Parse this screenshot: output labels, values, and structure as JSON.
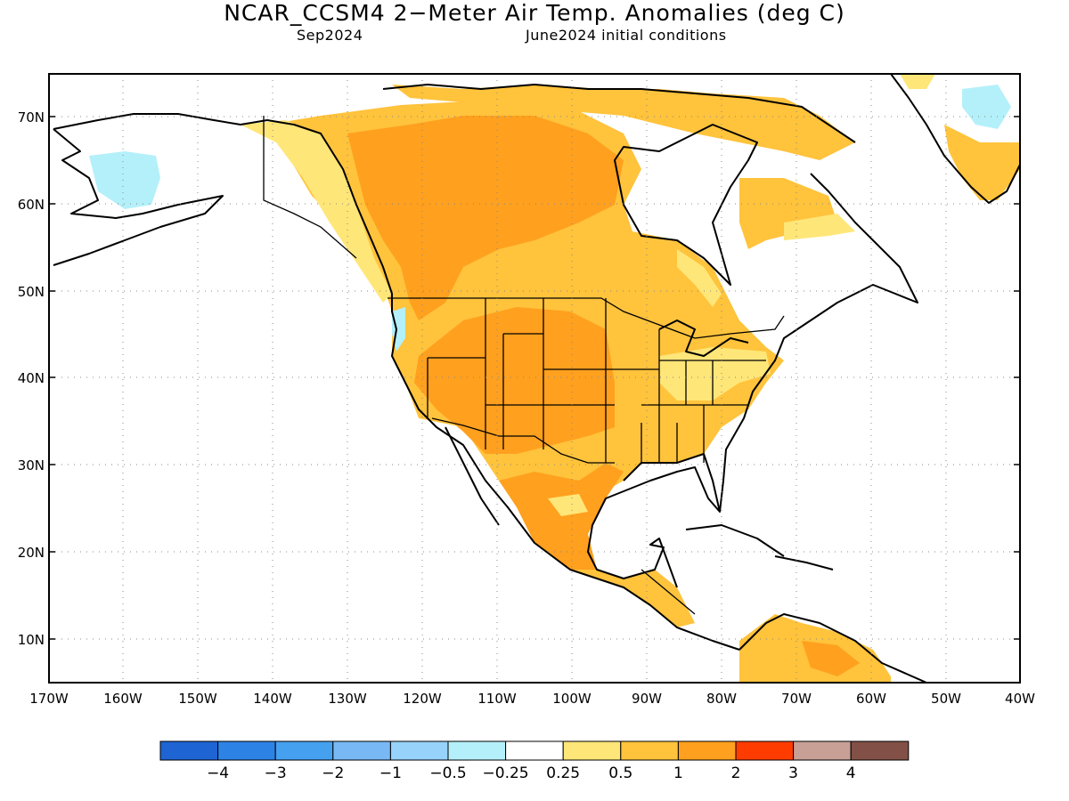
{
  "title": "NCAR_CCSM4 2−Meter Air Temp. Anomalies (deg C)",
  "valid_month": "Sep2024",
  "initial_conditions": "June2024 initial conditions",
  "lat_labels": [
    "70N",
    "60N",
    "50N",
    "40N",
    "30N",
    "20N",
    "10N"
  ],
  "lon_labels": [
    "170W",
    "160W",
    "150W",
    "140W",
    "130W",
    "120W",
    "110W",
    "100W",
    "90W",
    "80W",
    "70W",
    "60W",
    "50W",
    "40W"
  ],
  "colorbar": {
    "colors": [
      "#1e64d2",
      "#2d82e6",
      "#46a0f0",
      "#78b9f5",
      "#96d2fa",
      "#b4f0fa",
      "#ffffff",
      "#ffe678",
      "#ffc33c",
      "#ffa01e",
      "#ff3c00",
      "#c8a096",
      "#825046"
    ],
    "labels": [
      "−4",
      "−3",
      "−2",
      "−1",
      "−0.5",
      "−0.25",
      "0.25",
      "0.5",
      "1",
      "2",
      "3",
      "4"
    ]
  },
  "anomaly_colors": {
    "light_yellow": "#ffe678",
    "mid_orange": "#ffc33c",
    "dark_orange": "#ffa01e",
    "light_blue": "#b4f0fa"
  }
}
